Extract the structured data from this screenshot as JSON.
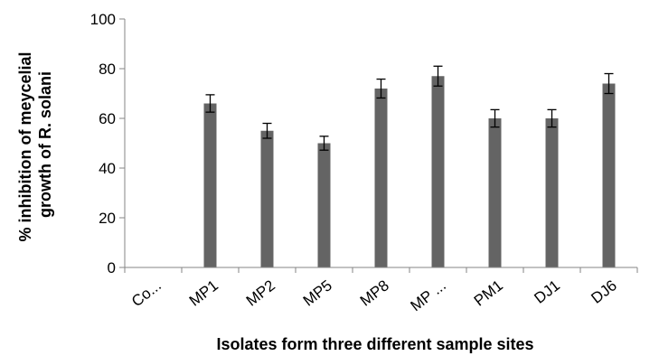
{
  "chart_data": {
    "type": "bar",
    "title": "",
    "ylabel_lines": [
      "% inhibition of meycelial",
      "growth of R. solani"
    ],
    "xlabel": "Isolates form  three different sample sites",
    "categories": [
      "Co...",
      "MP1",
      "MP2",
      "MP5",
      "MP8",
      "MP ...",
      "PM1",
      "DJ1",
      "DJ6"
    ],
    "values": [
      0,
      66,
      55,
      50,
      72,
      77,
      60,
      60,
      74
    ],
    "errors": [
      0,
      3.5,
      3,
      2.8,
      3.8,
      4,
      3.5,
      3.5,
      4
    ],
    "ylim": [
      0,
      100
    ],
    "yticks": [
      0,
      20,
      40,
      60,
      80,
      100
    ],
    "grid": false,
    "bar_color": "#646464"
  }
}
